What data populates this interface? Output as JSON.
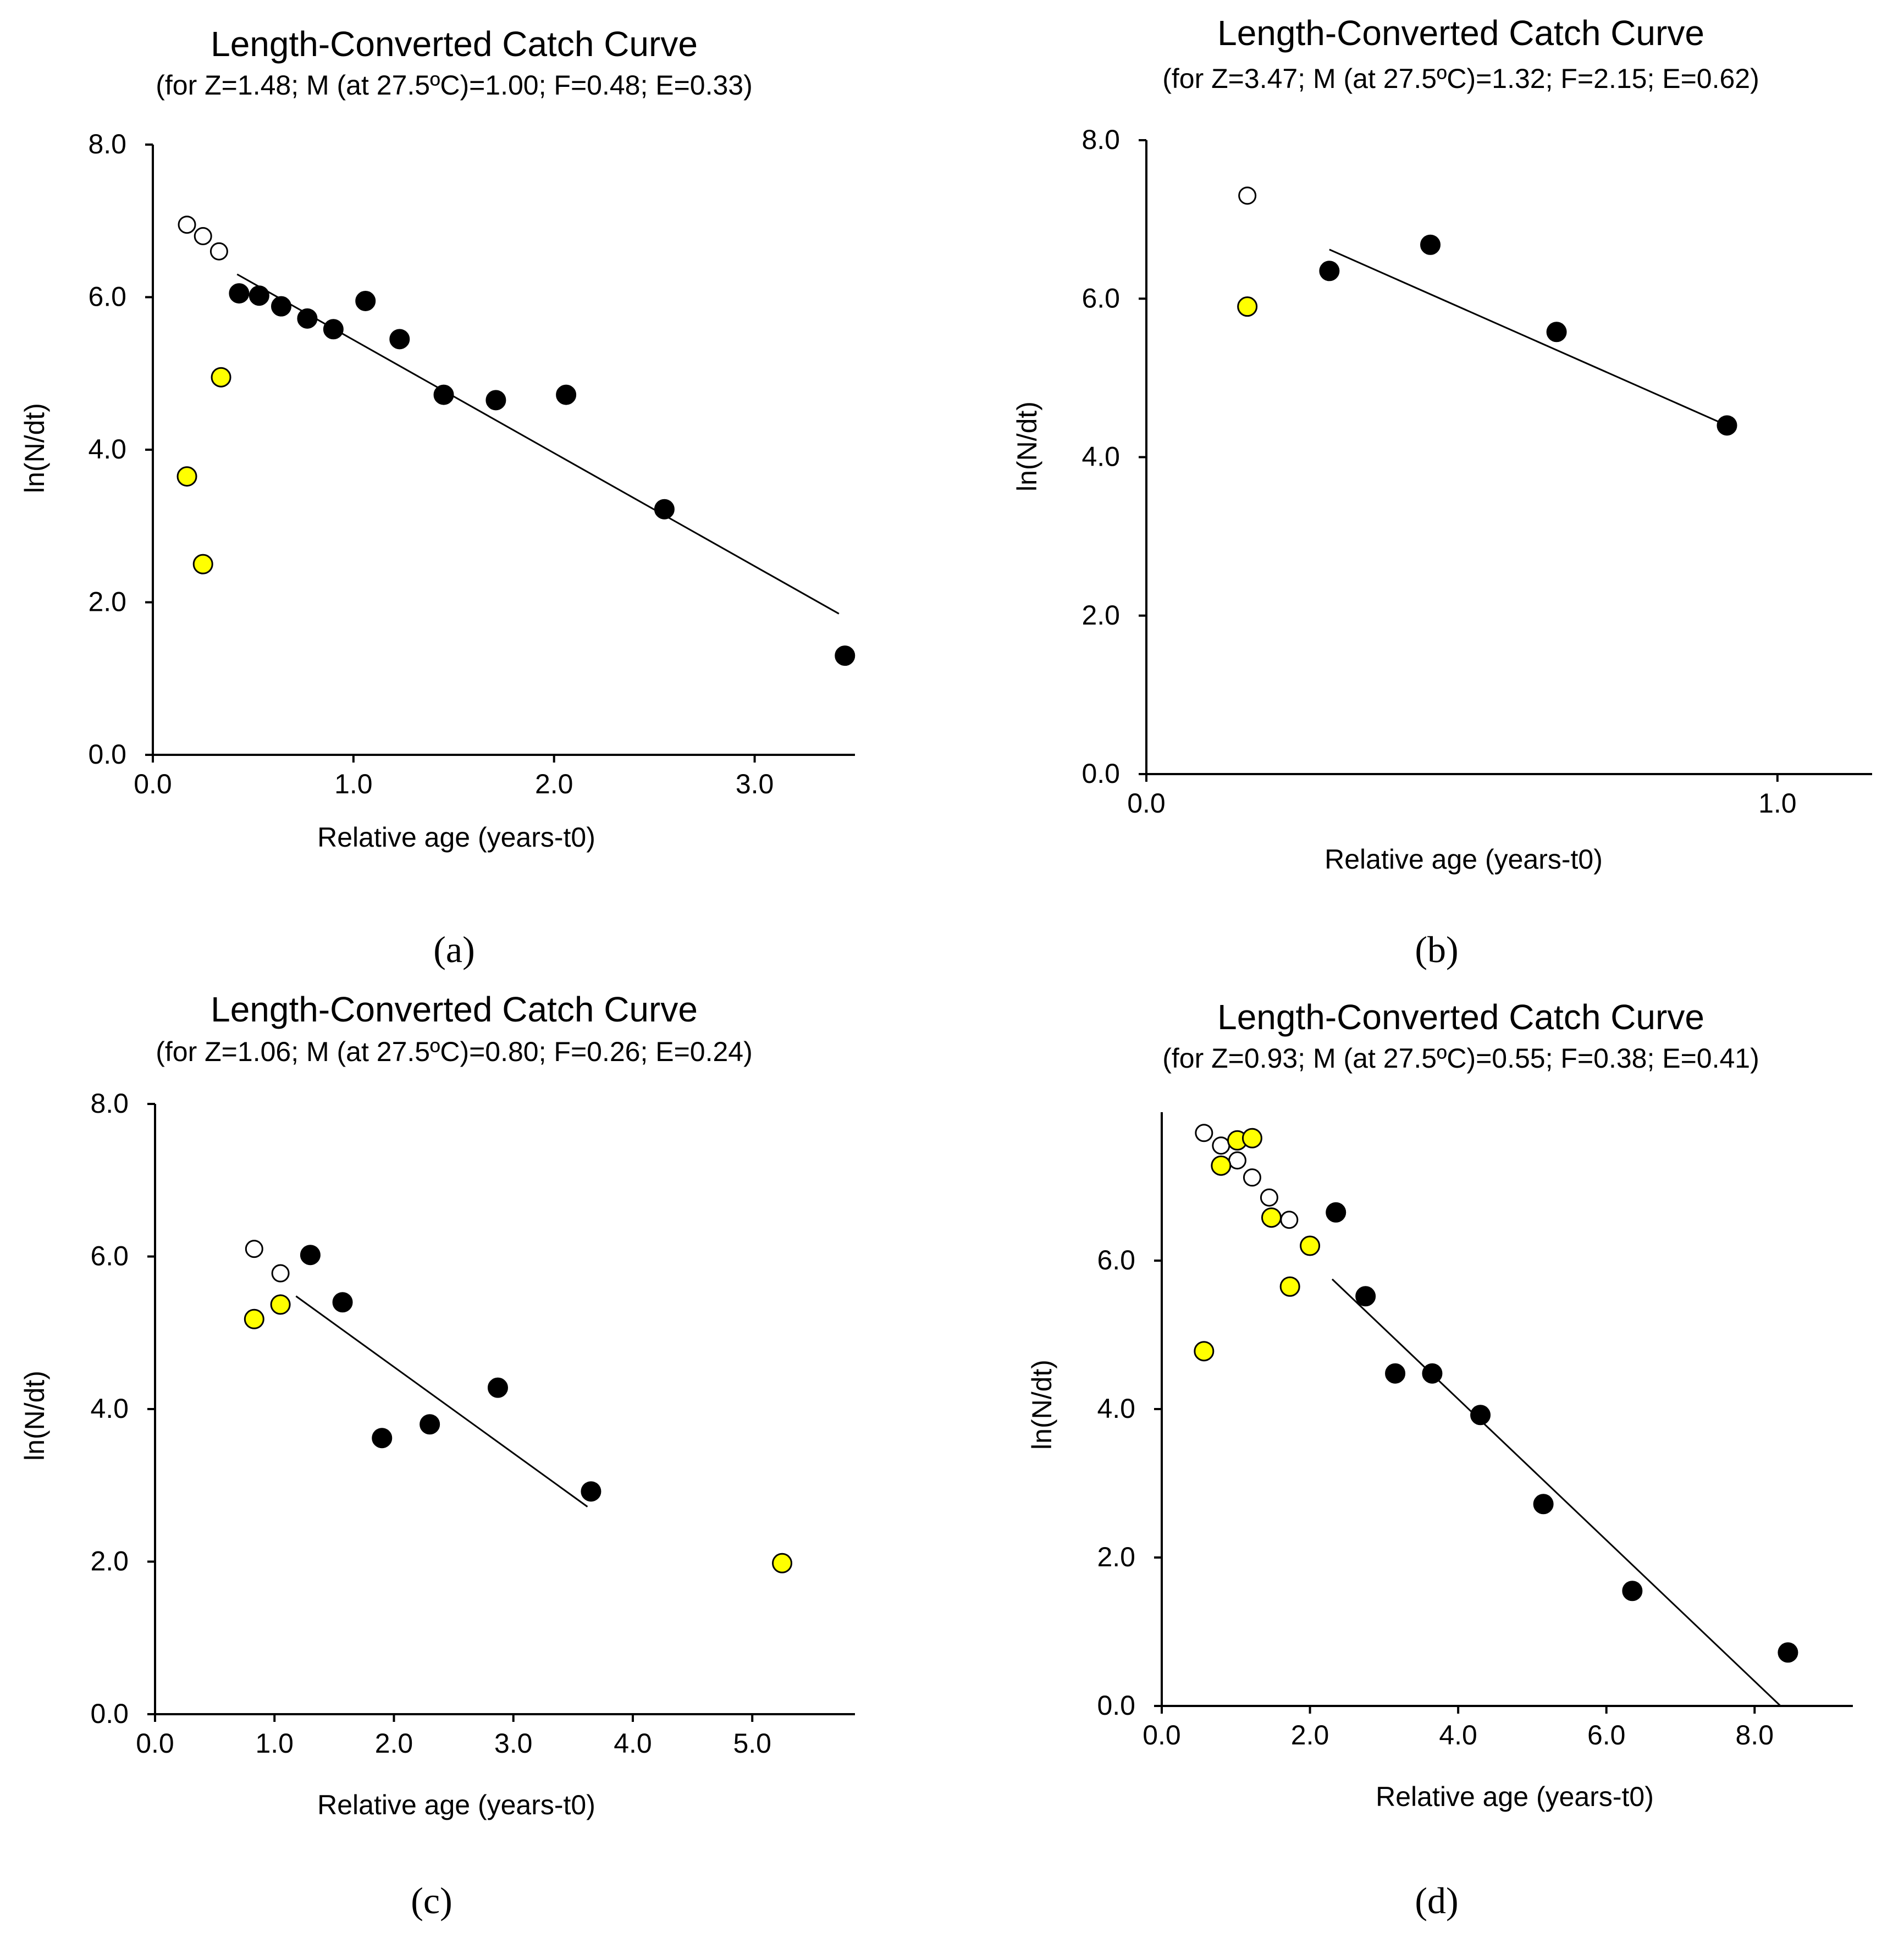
{
  "chart_data": [
    {
      "panel": "(a)",
      "type": "scatter",
      "title": "Length-Converted Catch Curve",
      "subtitle": "(for Z=1.48; M (at 27.5ºC)=1.00; F=0.48; E=0.33)",
      "xlabel": "Relative age (years-t0)",
      "ylabel": "ln(N/dt)",
      "xlim": [
        0,
        3.5
      ],
      "ylim": [
        0,
        8
      ],
      "xticks": [
        "0.0",
        "1.0",
        "2.0",
        "3.0"
      ],
      "yticks": [
        "0.0",
        "2.0",
        "4.0",
        "6.0",
        "8.0"
      ],
      "series": [
        {
          "name": "open",
          "x": [
            0.17,
            0.25,
            0.33
          ],
          "y": [
            6.95,
            6.8,
            6.6
          ]
        },
        {
          "name": "yellow",
          "x": [
            0.17,
            0.25,
            0.34
          ],
          "y": [
            3.65,
            2.5,
            4.95
          ]
        },
        {
          "name": "black",
          "x": [
            0.43,
            0.53,
            0.64,
            0.77,
            0.9,
            1.06,
            1.23,
            1.45,
            1.71,
            2.06,
            2.55,
            3.45
          ],
          "y": [
            6.05,
            6.02,
            5.88,
            5.72,
            5.58,
            5.95,
            5.45,
            4.72,
            4.65,
            4.72,
            3.22,
            1.3
          ]
        }
      ],
      "regression": {
        "x": [
          0.42,
          3.42
        ],
        "y": [
          6.3,
          1.85
        ]
      }
    },
    {
      "panel": "(b)",
      "type": "scatter",
      "title": "Length-Converted Catch Curve",
      "subtitle": "(for Z=3.47; M (at 27.5ºC)=1.32; F=2.15; E=0.62)",
      "xlabel": "Relative age (years-t0)",
      "ylabel": "ln(N/dt)",
      "xlim": [
        0,
        1.15
      ],
      "ylim": [
        0,
        8
      ],
      "xticks": [
        "0.0",
        "1.0"
      ],
      "yticks": [
        "0.0",
        "2.0",
        "4.0",
        "6.0",
        "8.0"
      ],
      "series": [
        {
          "name": "open",
          "x": [
            0.16
          ],
          "y": [
            7.3
          ]
        },
        {
          "name": "yellow",
          "x": [
            0.16
          ],
          "y": [
            5.9
          ]
        },
        {
          "name": "black",
          "x": [
            0.29,
            0.45,
            0.65,
            0.92
          ],
          "y": [
            6.35,
            6.68,
            5.58,
            4.4
          ]
        }
      ],
      "regression": {
        "x": [
          0.29,
          0.92
        ],
        "y": [
          6.62,
          4.4
        ]
      }
    },
    {
      "panel": "(c)",
      "type": "scatter",
      "title": "Length-Converted Catch Curve",
      "subtitle": "(for Z=1.06; M (at 27.5ºC)=0.80; F=0.26; E=0.24)",
      "xlabel": "Relative age (years-t0)",
      "ylabel": "ln(N/dt)",
      "xlim": [
        0,
        5.8
      ],
      "ylim": [
        0,
        8
      ],
      "xticks": [
        "0.0",
        "1.0",
        "2.0",
        "3.0",
        "4.0",
        "5.0"
      ],
      "yticks": [
        "0.0",
        "2.0",
        "4.0",
        "6.0",
        "8.0"
      ],
      "series": [
        {
          "name": "open",
          "x": [
            0.83,
            1.05
          ],
          "y": [
            6.1,
            5.78
          ]
        },
        {
          "name": "yellow",
          "x": [
            0.83,
            1.05,
            5.25
          ],
          "y": [
            5.18,
            5.37,
            1.98
          ]
        },
        {
          "name": "black",
          "x": [
            1.3,
            1.57,
            1.9,
            2.3,
            2.87,
            3.65
          ],
          "y": [
            6.02,
            5.4,
            3.62,
            3.8,
            4.28,
            2.92
          ]
        }
      ],
      "regression": {
        "x": [
          1.18,
          3.62
        ],
        "y": [
          5.48,
          2.72
        ]
      }
    },
    {
      "panel": "(d)",
      "type": "scatter",
      "title": "Length-Converted Catch Curve",
      "subtitle": "(for Z=0.93; M (at 27.5ºC)=0.55; F=0.38; E=0.41)",
      "xlabel": "Relative age (years-t0)",
      "ylabel": "ln(N/dt)",
      "xlim": [
        0,
        9.2
      ],
      "ylim": [
        0,
        8
      ],
      "xticks": [
        "0.0",
        "2.0",
        "4.0",
        "6.0",
        "8.0"
      ],
      "yticks": [
        "0.0",
        "2.0",
        "4.0",
        "6.0"
      ],
      "series": [
        {
          "name": "open",
          "x": [
            0.57,
            0.8,
            1.02,
            1.22,
            1.45,
            1.72
          ],
          "y": [
            7.72,
            7.55,
            7.35,
            7.12,
            6.85,
            6.55
          ]
        },
        {
          "name": "yellow",
          "x": [
            0.57,
            0.8,
            1.02,
            1.22,
            1.48,
            1.73,
            2.0
          ],
          "y": [
            4.78,
            7.28,
            7.62,
            7.65,
            6.58,
            5.65,
            6.2
          ]
        },
        {
          "name": "black",
          "x": [
            2.35,
            2.75,
            3.15,
            3.65,
            4.3,
            5.15,
            6.35,
            8.45
          ],
          "y": [
            6.65,
            5.52,
            4.48,
            4.48,
            3.92,
            2.72,
            1.55,
            0.72
          ]
        }
      ],
      "regression": {
        "x": [
          2.3,
          8.35
        ],
        "y": [
          5.75,
          0.0
        ]
      }
    }
  ]
}
